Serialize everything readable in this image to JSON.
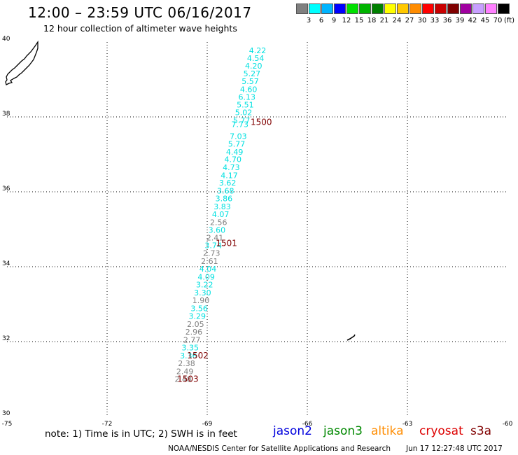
{
  "header": {
    "title": "12:00 – 23:59 UTC 06/16/2017",
    "subtitle": "12 hour collection of altimeter wave heights"
  },
  "legend": {
    "colors": [
      "#808080",
      "#00ffff",
      "#00b4ff",
      "#0000ff",
      "#00e000",
      "#00b400",
      "#008000",
      "#ffff00",
      "#ffc800",
      "#ff8c00",
      "#ff0000",
      "#c80000",
      "#800000",
      "#a000a0",
      "#c8a0ff",
      "#ff80ff",
      "#000000"
    ],
    "labels": [
      "3",
      "6",
      "9",
      "12",
      "15",
      "18",
      "21",
      "24",
      "27",
      "30",
      "33",
      "36",
      "39",
      "42",
      "45",
      "70"
    ],
    "unit": "(ft)"
  },
  "map": {
    "lon_labels": [
      "-75",
      "-72",
      "-69",
      "-66",
      "-63",
      "-60"
    ],
    "lat_labels": [
      "40",
      "38",
      "36",
      "34",
      "32",
      "30"
    ]
  },
  "observations": [
    {
      "lon": -67.49,
      "lat": 39.78,
      "swh": "4.22",
      "color": "#00e0e0"
    },
    {
      "lon": -67.55,
      "lat": 39.57,
      "swh": "4.54",
      "color": "#00e0e0"
    },
    {
      "lon": -67.61,
      "lat": 39.36,
      "swh": "4.20",
      "color": "#00e0e0"
    },
    {
      "lon": -67.66,
      "lat": 39.16,
      "swh": "5.27",
      "color": "#00e0e0"
    },
    {
      "lon": -67.71,
      "lat": 38.95,
      "swh": "5.57",
      "color": "#00e0e0"
    },
    {
      "lon": -67.76,
      "lat": 38.74,
      "swh": "4.60",
      "color": "#00e0e0"
    },
    {
      "lon": -67.81,
      "lat": 38.53,
      "swh": "6.13",
      "color": "#00e0e0"
    },
    {
      "lon": -67.86,
      "lat": 38.33,
      "swh": "5.51",
      "color": "#00e0e0"
    },
    {
      "lon": -67.91,
      "lat": 38.12,
      "swh": "5.02",
      "color": "#00e0e0"
    },
    {
      "lon": -67.97,
      "lat": 37.91,
      "swh": "5.77",
      "color": "#00e0e0"
    },
    {
      "lon": -68.02,
      "lat": 37.8,
      "swh": "7.73",
      "color": "#00e0e0"
    },
    {
      "lon": -68.07,
      "lat": 37.49,
      "swh": "7.03",
      "color": "#00e0e0"
    },
    {
      "lon": -68.12,
      "lat": 37.28,
      "swh": "5.77",
      "color": "#00e0e0"
    },
    {
      "lon": -68.18,
      "lat": 37.07,
      "swh": "4.49",
      "color": "#00e0e0"
    },
    {
      "lon": -68.23,
      "lat": 36.87,
      "swh": "4.70",
      "color": "#00e0e0"
    },
    {
      "lon": -68.28,
      "lat": 36.65,
      "swh": "4.73",
      "color": "#00e0e0"
    },
    {
      "lon": -68.34,
      "lat": 36.44,
      "swh": "4.17",
      "color": "#00e0e0"
    },
    {
      "lon": -68.39,
      "lat": 36.24,
      "swh": "3.62",
      "color": "#00e0e0"
    },
    {
      "lon": -68.45,
      "lat": 36.03,
      "swh": "3.68",
      "color": "#00e0e0"
    },
    {
      "lon": -68.5,
      "lat": 35.82,
      "swh": "3.86",
      "color": "#00e0e0"
    },
    {
      "lon": -68.55,
      "lat": 35.61,
      "swh": "3.83",
      "color": "#00e0e0"
    },
    {
      "lon": -68.6,
      "lat": 35.4,
      "swh": "4.07",
      "color": "#00e0e0"
    },
    {
      "lon": -68.66,
      "lat": 35.19,
      "swh": "2.56",
      "color": "#808080"
    },
    {
      "lon": -68.71,
      "lat": 34.98,
      "swh": "3.60",
      "color": "#00e0e0"
    },
    {
      "lon": -68.77,
      "lat": 34.78,
      "swh": "2.41",
      "color": "#808080"
    },
    {
      "lon": -68.82,
      "lat": 34.57,
      "swh": "3.74",
      "color": "#00e0e0"
    },
    {
      "lon": -68.87,
      "lat": 34.36,
      "swh": "2.73",
      "color": "#808080"
    },
    {
      "lon": -68.93,
      "lat": 34.15,
      "swh": "2.61",
      "color": "#808080"
    },
    {
      "lon": -68.98,
      "lat": 33.94,
      "swh": "4.04",
      "color": "#00e0e0"
    },
    {
      "lon": -69.03,
      "lat": 33.73,
      "swh": "4.09",
      "color": "#00e0e0"
    },
    {
      "lon": -69.08,
      "lat": 33.52,
      "swh": "3.22",
      "color": "#00e0e0"
    },
    {
      "lon": -69.14,
      "lat": 33.31,
      "swh": "3.30",
      "color": "#00e0e0"
    },
    {
      "lon": -69.19,
      "lat": 33.1,
      "swh": "1.90",
      "color": "#808080"
    },
    {
      "lon": -69.24,
      "lat": 32.89,
      "swh": "3.56",
      "color": "#00e0e0"
    },
    {
      "lon": -69.3,
      "lat": 32.68,
      "swh": "3.29",
      "color": "#00e0e0"
    },
    {
      "lon": -69.35,
      "lat": 32.47,
      "swh": "2.05",
      "color": "#808080"
    },
    {
      "lon": -69.4,
      "lat": 32.26,
      "swh": "2.96",
      "color": "#808080"
    },
    {
      "lon": -69.46,
      "lat": 32.05,
      "swh": "2.77",
      "color": "#808080"
    },
    {
      "lon": -69.51,
      "lat": 31.84,
      "swh": "3.35",
      "color": "#00e0e0"
    },
    {
      "lon": -69.56,
      "lat": 31.63,
      "swh": "3.36",
      "color": "#00e0e0"
    },
    {
      "lon": -69.62,
      "lat": 31.42,
      "swh": "2.38",
      "color": "#808080"
    },
    {
      "lon": -69.67,
      "lat": 31.21,
      "swh": "2.49",
      "color": "#808080"
    },
    {
      "lon": -69.72,
      "lat": 31.0,
      "swh": "2.48",
      "color": "#808080"
    }
  ],
  "time_markers": [
    {
      "lon": -67.7,
      "lat": 37.86,
      "label": "1500"
    },
    {
      "lon": -68.74,
      "lat": 34.63,
      "label": "1501"
    },
    {
      "lon": -69.6,
      "lat": 31.63,
      "label": "1502"
    },
    {
      "lon": -69.9,
      "lat": 31.0,
      "label": "1503"
    }
  ],
  "footer": {
    "note": "note: 1) Time is in UTC; 2) SWH is in feet",
    "satellites": [
      {
        "name": "jason2",
        "color": "#0000dd"
      },
      {
        "name": "jason3",
        "color": "#008800"
      },
      {
        "name": "altika",
        "color": "#ff8c00"
      },
      {
        "name": "cryosat",
        "color": "#dd0000"
      },
      {
        "name": "s3a",
        "color": "#800000"
      }
    ],
    "credit": "NOAA/NESDIS Center for Satellite Applications and Research",
    "timestamp": "Jun 17 12:27:48 UTC 2017"
  }
}
